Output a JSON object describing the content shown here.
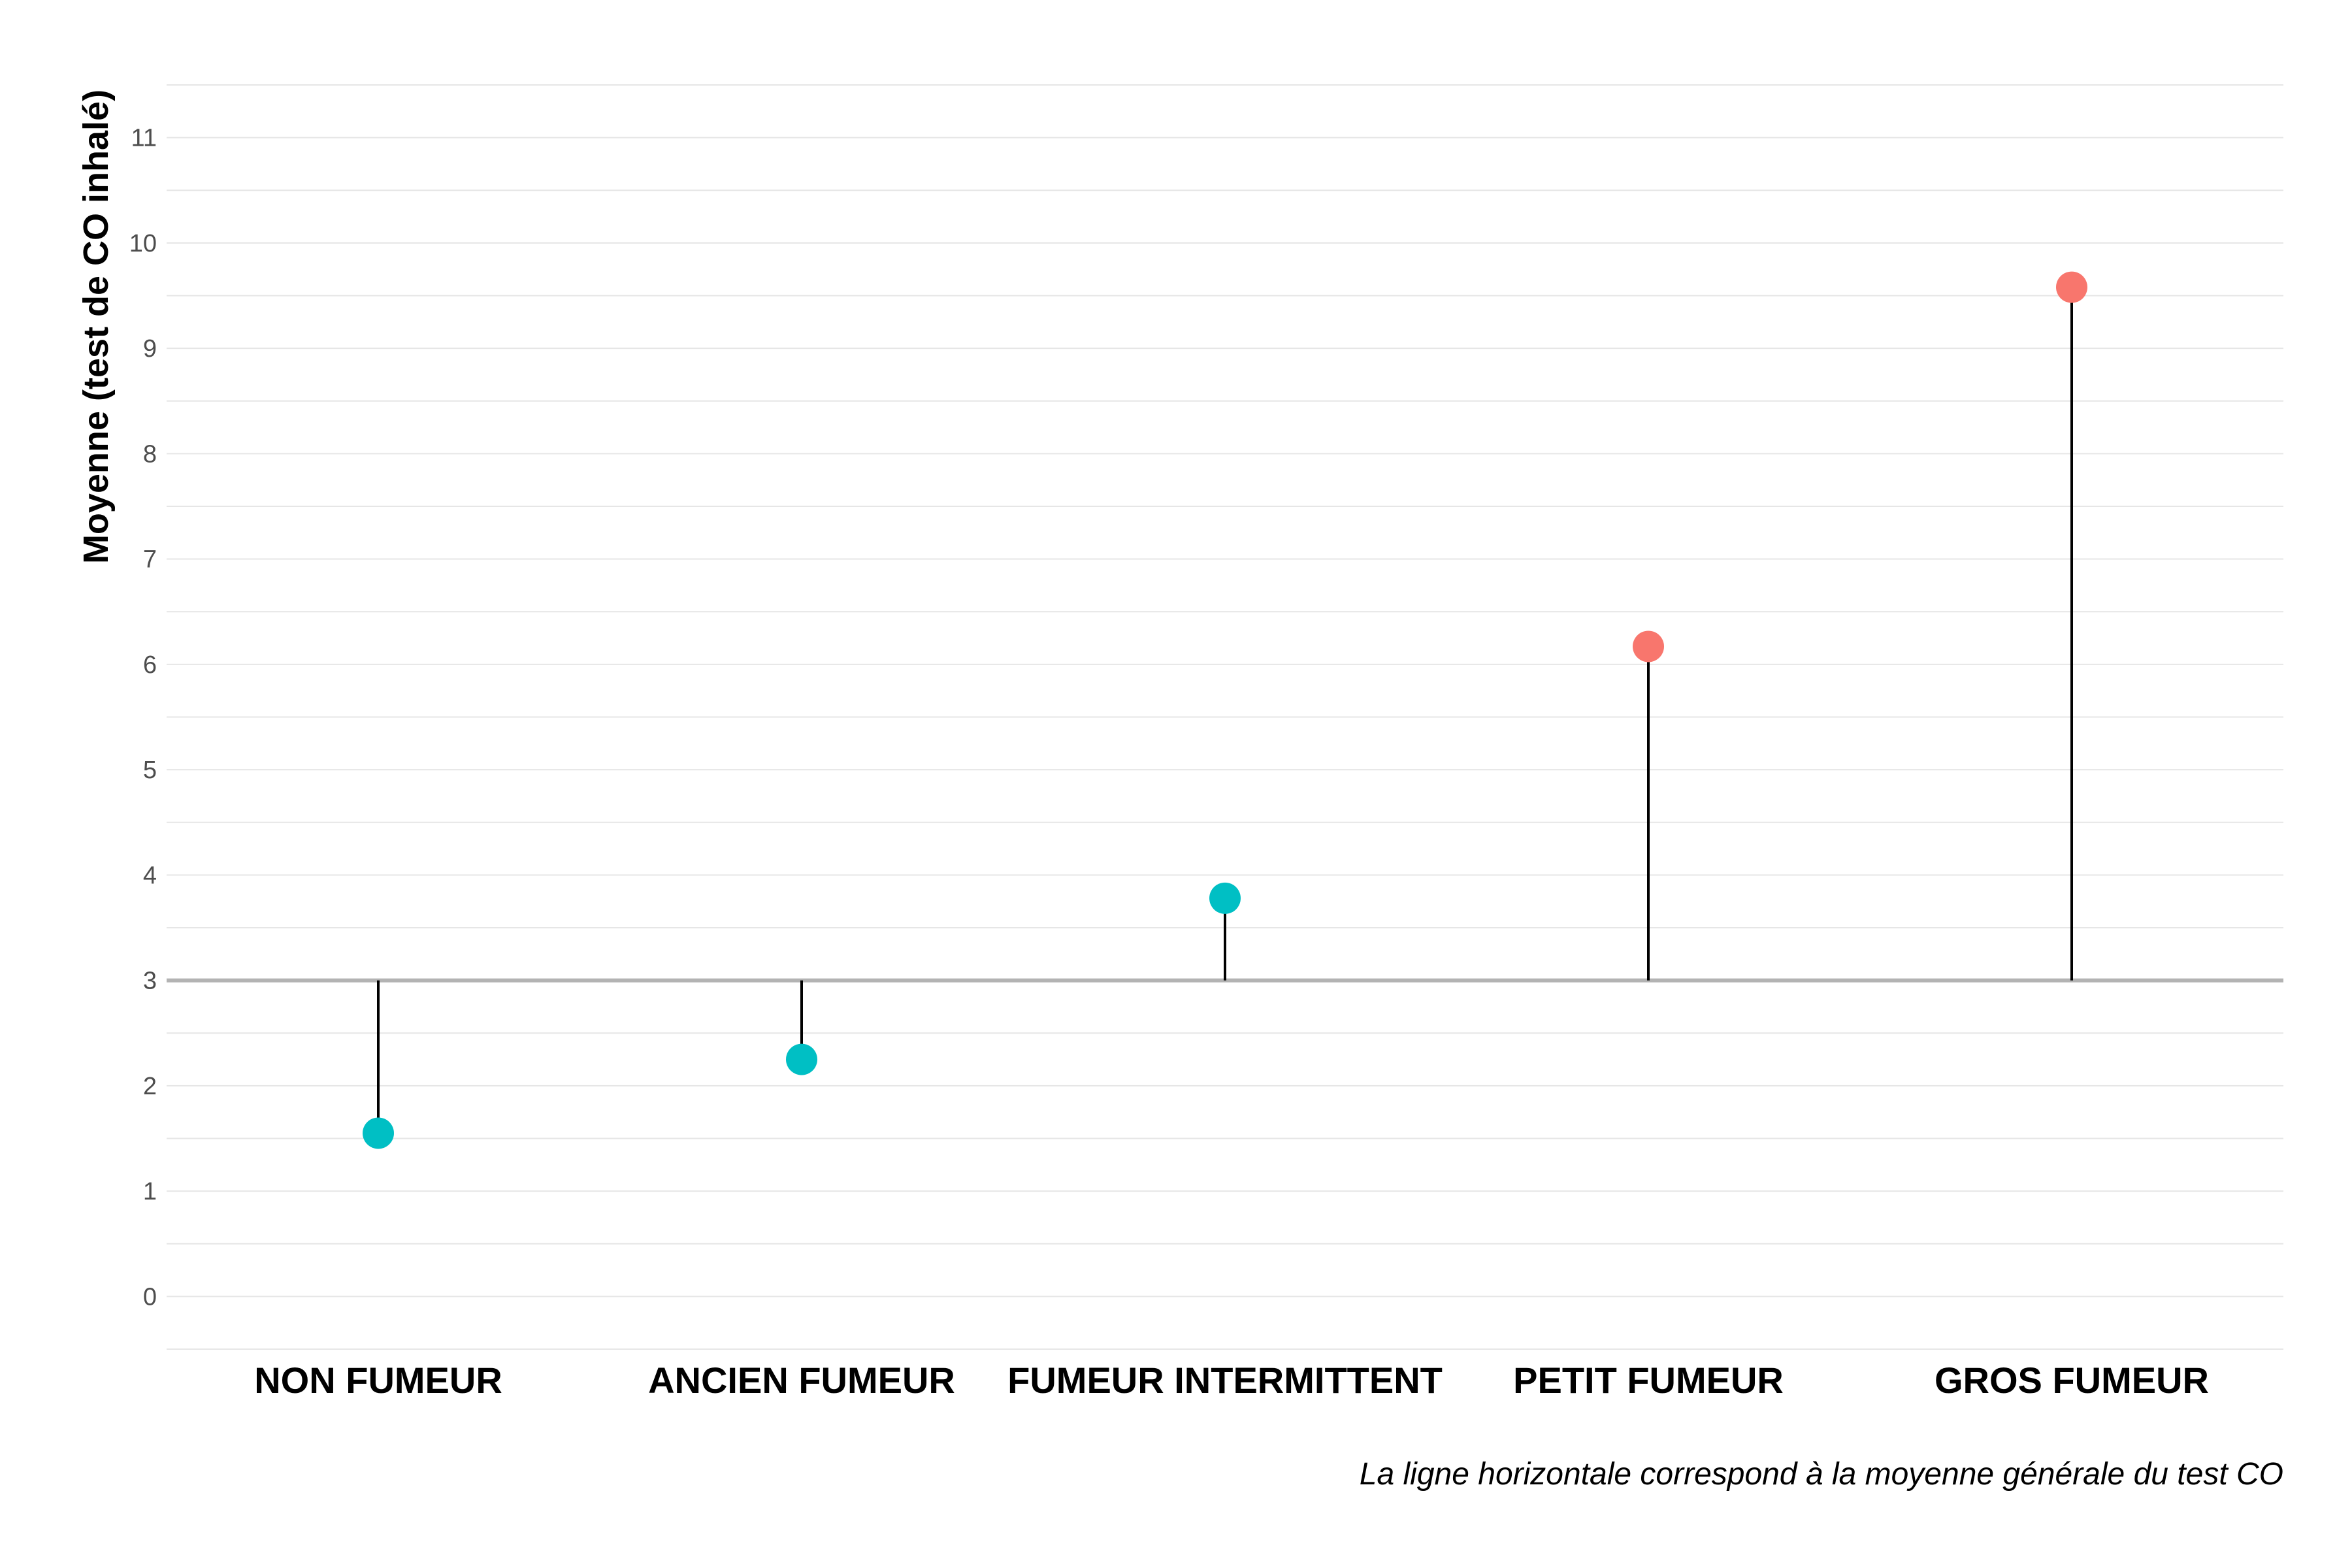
{
  "chart_data": {
    "type": "lollipop",
    "ylabel": "Moyenne (test de CO inhalé)",
    "caption": "La ligne horizontale correspond à la moyenne générale du test CO",
    "ylim": [
      -0.5,
      11.5
    ],
    "yticks": [
      0,
      1,
      2,
      3,
      4,
      5,
      6,
      7,
      8,
      9,
      10,
      11
    ],
    "grid": true,
    "reference_line": 3,
    "categories": [
      "NON FUMEUR",
      "ANCIEN FUMEUR",
      "FUMEUR INTERMITTENT",
      "PETIT FUMEUR",
      "GROS FUMEUR"
    ],
    "values": [
      1.55,
      2.25,
      3.78,
      6.17,
      9.58
    ],
    "colors": {
      "below_or_near": "#00BFC4",
      "above": "#F8766D",
      "stem": "#000000",
      "reference": "#b3b3b3",
      "grid": "#e6e6e6"
    },
    "point_colors": [
      "#00BFC4",
      "#00BFC4",
      "#00BFC4",
      "#F8766D",
      "#F8766D"
    ]
  }
}
